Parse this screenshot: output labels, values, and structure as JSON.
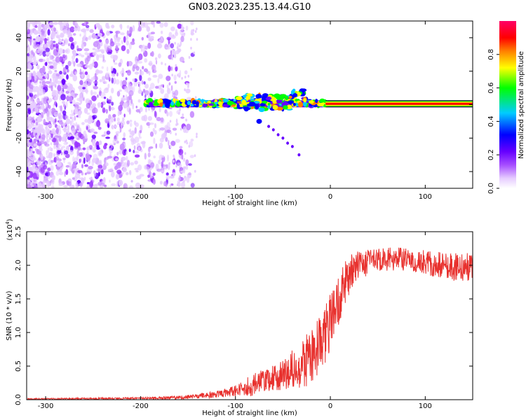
{
  "figure": {
    "title": "GN03.2023.235.13.44.G10"
  },
  "chart_data": [
    {
      "type": "heatmap",
      "name": "spectrogram",
      "xlabel": "Height of straight line (km)",
      "ylabel": "Frequency (Hz)",
      "xlim": [
        -320,
        150
      ],
      "ylim": [
        -50,
        50
      ],
      "x_ticks": [
        -300,
        -200,
        -100,
        0,
        100
      ],
      "y_ticks": [
        -40,
        -20,
        0,
        20,
        40
      ],
      "grid": false,
      "colorbar": {
        "label": "Normalized spectral amplitude",
        "range": [
          0.0,
          1.0
        ],
        "ticks": [
          0.0,
          0.2,
          0.4,
          0.6,
          0.8
        ],
        "colormap": [
          "#ffffff",
          "#e6ccff",
          "#a64dff",
          "#6600ff",
          "#0000ff",
          "#00ccff",
          "#00ff00",
          "#ffff00",
          "#ff8000",
          "#ff0000",
          "#ff0066"
        ]
      },
      "features": {
        "noise_region_x": [
          -320,
          -145
        ],
        "carrier_start_x": -195,
        "carrier_frequency_hz": 0.5,
        "disturbed_region_x": [
          -100,
          -25
        ],
        "descending_trace": [
          [
            -75,
            -10
          ],
          [
            -65,
            -13
          ],
          [
            -60,
            -15
          ],
          [
            -55,
            -18
          ],
          [
            -50,
            -20
          ],
          [
            -45,
            -23
          ],
          [
            -40,
            -25
          ],
          [
            -33,
            -30
          ]
        ],
        "steady_carrier_x": [
          -5,
          150
        ]
      }
    },
    {
      "type": "line",
      "name": "snr",
      "xlabel": "Height of straight line (km)",
      "ylabel": "SNR (10 * v/v)",
      "multiplier_label": "(x10",
      "multiplier_exp": "4",
      "multiplier_close": ")",
      "xlim": [
        -320,
        150
      ],
      "ylim": [
        0,
        2.5
      ],
      "x_ticks": [
        -300,
        -200,
        -100,
        0,
        100
      ],
      "y_ticks": [
        "0.0",
        "0.5",
        "1.0",
        "1.5",
        "2.0",
        "2.5"
      ],
      "y_tick_values": [
        0,
        0.5,
        1.0,
        1.5,
        2.0,
        2.5
      ],
      "grid": false,
      "series": [
        {
          "color": "#e8312e",
          "trend": {
            "x": [
              -320,
              -200,
              -160,
              -140,
              -120,
              -100,
              -80,
              -60,
              -40,
              -20,
              -10,
              0,
              10,
              20,
              30,
              50,
              70,
              90,
              110,
              130,
              150
            ],
            "y": [
              0.01,
              0.02,
              0.03,
              0.05,
              0.08,
              0.13,
              0.22,
              0.32,
              0.45,
              0.65,
              0.85,
              1.15,
              1.55,
              1.85,
              2.0,
              2.08,
              2.1,
              2.07,
              2.02,
              1.97,
              1.98
            ]
          },
          "noise_amplitude": {
            "x": [
              -320,
              -200,
              -150,
              -120,
              -100,
              -80,
              -60,
              -40,
              -20,
              0,
              20,
              40,
              80,
              120,
              150
            ],
            "a": [
              0.01,
              0.015,
              0.03,
              0.05,
              0.08,
              0.18,
              0.2,
              0.3,
              0.45,
              0.45,
              0.3,
              0.18,
              0.17,
              0.2,
              0.22
            ]
          }
        }
      ]
    }
  ]
}
